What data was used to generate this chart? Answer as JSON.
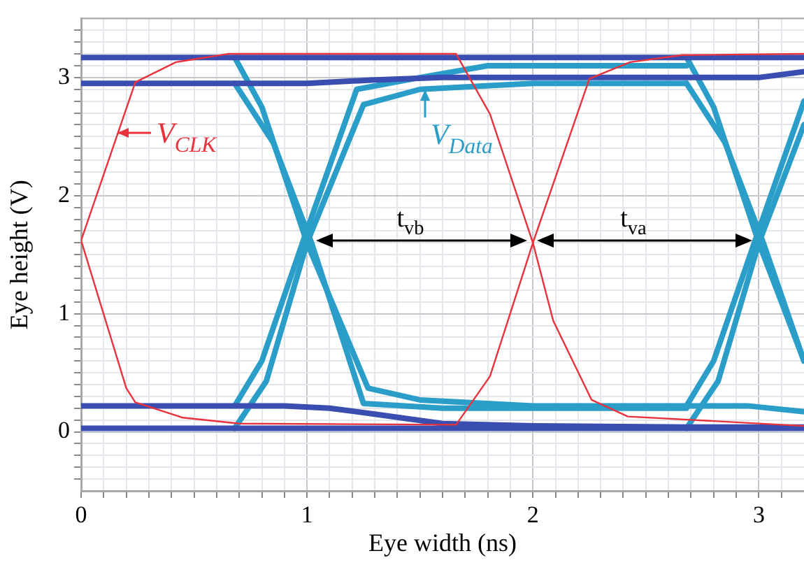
{
  "chart_data": {
    "type": "line",
    "xlabel": "Eye width (ns)",
    "ylabel": "Eye height (V)",
    "xlim": [
      0,
      3.2
    ],
    "ylim": [
      -0.5,
      3.5
    ],
    "xticks": [
      0,
      {
        "value": 0.1,
        "label": null
      },
      {
        "value": 0.2,
        "label": null
      },
      {
        "value": 0.3,
        "label": null
      },
      {
        "value": 0.4,
        "label": null
      },
      {
        "value": 0.5,
        "label": null
      },
      {
        "value": 0.6,
        "label": null
      },
      {
        "value": 0.7,
        "label": null
      },
      {
        "value": 0.8,
        "label": null
      },
      {
        "value": 0.9,
        "label": null
      },
      1,
      {
        "value": 1.1,
        "label": null
      },
      {
        "value": 1.2,
        "label": null
      },
      {
        "value": 1.3,
        "label": null
      },
      {
        "value": 1.4,
        "label": null
      },
      {
        "value": 1.5,
        "label": null
      },
      {
        "value": 1.6,
        "label": null
      },
      {
        "value": 1.7,
        "label": null
      },
      {
        "value": 1.8,
        "label": null
      },
      {
        "value": 1.9,
        "label": null
      },
      2,
      {
        "value": 2.1,
        "label": null
      },
      {
        "value": 2.2,
        "label": null
      },
      {
        "value": 2.3,
        "label": null
      },
      {
        "value": 2.4,
        "label": null
      },
      {
        "value": 2.5,
        "label": null
      },
      {
        "value": 2.6,
        "label": null
      },
      {
        "value": 2.7,
        "label": null
      },
      {
        "value": 2.8,
        "label": null
      },
      {
        "value": 2.9,
        "label": null
      },
      3,
      {
        "value": 3.1,
        "label": null
      }
    ],
    "yticks": [
      {
        "value": -0.4,
        "label": null
      },
      {
        "value": -0.3,
        "label": null
      },
      {
        "value": -0.2,
        "label": null
      },
      {
        "value": -0.1,
        "label": null
      },
      0,
      {
        "value": 0.1,
        "label": null
      },
      {
        "value": 0.2,
        "label": null
      },
      {
        "value": 0.3,
        "label": null
      },
      {
        "value": 0.4,
        "label": null
      },
      {
        "value": 0.5,
        "label": null
      },
      {
        "value": 0.6,
        "label": null
      },
      {
        "value": 0.7,
        "label": null
      },
      {
        "value": 0.8,
        "label": null
      },
      {
        "value": 0.9,
        "label": null
      },
      1,
      {
        "value": 1.1,
        "label": null
      },
      {
        "value": 1.2,
        "label": null
      },
      {
        "value": 1.3,
        "label": null
      },
      {
        "value": 1.4,
        "label": null
      },
      {
        "value": 1.5,
        "label": null
      },
      {
        "value": 1.6,
        "label": null
      },
      {
        "value": 1.7,
        "label": null
      },
      {
        "value": 1.8,
        "label": null
      },
      {
        "value": 1.9,
        "label": null
      },
      2,
      {
        "value": 2.1,
        "label": null
      },
      {
        "value": 2.2,
        "label": null
      },
      {
        "value": 2.3,
        "label": null
      },
      {
        "value": 2.4,
        "label": null
      },
      {
        "value": 2.5,
        "label": null
      },
      {
        "value": 2.6,
        "label": null
      },
      {
        "value": 2.7,
        "label": null
      },
      {
        "value": 2.8,
        "label": null
      },
      {
        "value": 2.9,
        "label": null
      },
      3,
      {
        "value": 3.1,
        "label": null
      },
      {
        "value": 3.2,
        "label": null
      },
      {
        "value": 3.3,
        "label": null
      },
      {
        "value": 3.4,
        "label": null
      }
    ],
    "grid": true,
    "series": [
      {
        "color": "#3a4db0",
        "x": [
          0,
          3.2
        ],
        "values": [
          3.17,
          3.17
        ]
      },
      {
        "color": "#3a4db0",
        "x": [
          0,
          1.0,
          1.3,
          1.6,
          2.0,
          3.0,
          3.2
        ],
        "values": [
          2.95,
          2.95,
          2.98,
          3.0,
          3.0,
          3.0,
          3.05
        ]
      },
      {
        "color": "#3a4db0",
        "x": [
          0,
          3.2
        ],
        "values": [
          0.03,
          0.03
        ]
      },
      {
        "color": "#3a4db0",
        "x": [
          0,
          0.9,
          1.1,
          1.3,
          1.6,
          2.0,
          2.68,
          3.2
        ],
        "values": [
          0.22,
          0.22,
          0.2,
          0.15,
          0.07,
          0.05,
          0.04,
          0.04
        ]
      },
      {
        "color": "#2a9ec8",
        "x": [
          0.68,
          0.8,
          1.0,
          1.27,
          1.5,
          2.0,
          2.95,
          3.2
        ],
        "values": [
          3.17,
          2.75,
          1.6,
          0.37,
          0.27,
          0.22,
          0.22,
          0.17
        ]
      },
      {
        "color": "#2a9ec8",
        "x": [
          0.68,
          0.85,
          1.02,
          1.25,
          1.6,
          2.68
        ],
        "values": [
          2.95,
          2.45,
          1.6,
          0.24,
          0.2,
          0.2
        ]
      },
      {
        "name": "V$_{Data}$",
        "color": "#2a9ec8",
        "x": [
          0.68,
          0.82,
          1.0,
          1.25,
          1.5,
          2.0,
          2.68
        ],
        "values": [
          0.03,
          0.43,
          1.6,
          2.77,
          2.9,
          2.95,
          2.95
        ]
      },
      {
        "color": "#2a9ec8",
        "x": [
          0.68,
          0.8,
          0.98,
          1.22,
          1.5,
          1.8,
          2.68
        ],
        "values": [
          0.22,
          0.6,
          1.6,
          2.9,
          3.0,
          3.1,
          3.1
        ]
      },
      {
        "color": "#2a9ec8",
        "x": [
          2.68,
          2.8,
          3.0,
          3.2
        ],
        "values": [
          3.17,
          2.75,
          1.6,
          0.6
        ]
      },
      {
        "color": "#2a9ec8",
        "x": [
          2.68,
          2.85,
          3.02,
          3.2
        ],
        "values": [
          2.95,
          2.45,
          1.6,
          0.6
        ]
      },
      {
        "color": "#2a9ec8",
        "x": [
          2.68,
          2.82,
          3.0,
          3.2
        ],
        "values": [
          0.03,
          0.43,
          1.6,
          2.6
        ]
      },
      {
        "color": "#2a9ec8",
        "x": [
          2.68,
          2.8,
          2.98,
          3.2
        ],
        "values": [
          0.22,
          0.6,
          1.6,
          2.8
        ]
      },
      {
        "name": "V$_{CLK}$",
        "color": "#e8323c",
        "x": [
          0,
          0.24,
          0.42,
          0.65,
          1.66,
          1.81,
          2.0,
          2.09,
          2.26,
          2.42,
          3.2
        ],
        "values": [
          1.62,
          2.96,
          3.13,
          3.2,
          3.2,
          2.69,
          1.6,
          0.94,
          0.27,
          0.13,
          0.05
        ]
      },
      {
        "color": "#e8323c",
        "x": [
          0,
          0.2,
          0.24,
          0.45,
          0.7,
          1.66,
          1.81,
          2.0,
          2.25,
          2.43,
          2.66,
          3.2
        ],
        "values": [
          1.62,
          0.37,
          0.25,
          0.12,
          0.07,
          0.06,
          0.47,
          1.6,
          2.99,
          3.13,
          3.19,
          3.2
        ]
      }
    ],
    "annotations": [
      "t$_{vb}$",
      "t$_{va}$"
    ]
  }
}
